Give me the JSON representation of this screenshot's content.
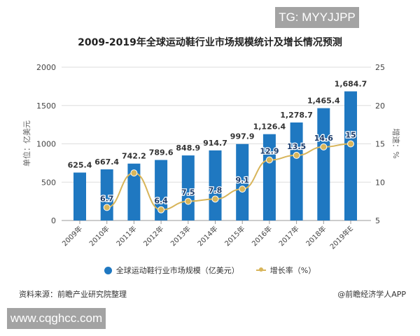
{
  "watermark_top": "TG: MYYJJPP",
  "watermark_bottom": "www.cqghcc.com",
  "chart_data": {
    "type": "bar+line",
    "title": "2009-2019年全球运动鞋行业市场规模统计及增长情况预测",
    "categories": [
      "2009年",
      "2010年",
      "2011年",
      "2012年",
      "2013年",
      "2014年",
      "2015年",
      "2016年",
      "2017年",
      "2018年",
      "2019年E"
    ],
    "ylabel_left": "单位：亿美元",
    "ylabel_right": "增速：%",
    "ylim_left": [
      0,
      2000
    ],
    "yticks_left": [
      "0",
      "500",
      "1000",
      "1500",
      "2000"
    ],
    "ylim_right": [
      5,
      25
    ],
    "yticks_right": [
      "5",
      "10",
      "15",
      "20",
      "25"
    ],
    "grid": true,
    "legend_position": "bottom",
    "series": [
      {
        "name": "全球运动鞋行业市场规模（亿美元）",
        "kind": "bar",
        "color": "#1f78c1",
        "values": [
          625.4,
          667.4,
          742.2,
          789.6,
          848.9,
          914.7,
          997.9,
          1126.4,
          1278.7,
          1465.4,
          1684.7
        ],
        "labels": [
          "625.4",
          "667.4",
          "742.2",
          "789.6",
          "848.9",
          "914.7",
          "997.9",
          "1,126.4",
          "1,278.7",
          "1,465.4",
          "1,684.7"
        ]
      },
      {
        "name": "增长率（%）",
        "kind": "line",
        "color": "#d8b55a",
        "axis": "right",
        "values": [
          null,
          6.7,
          11.2,
          6.4,
          7.5,
          7.8,
          9.1,
          12.9,
          13.5,
          14.6,
          15
        ],
        "labels": [
          null,
          "6.7",
          null,
          "6.4",
          "7.5",
          "7.8",
          "9.1",
          "12.9",
          "13.5",
          "14.6",
          "15"
        ]
      }
    ]
  },
  "source": "资料来源：前瞻产业研究院整理",
  "credit": "@前瞻经济学人APP"
}
